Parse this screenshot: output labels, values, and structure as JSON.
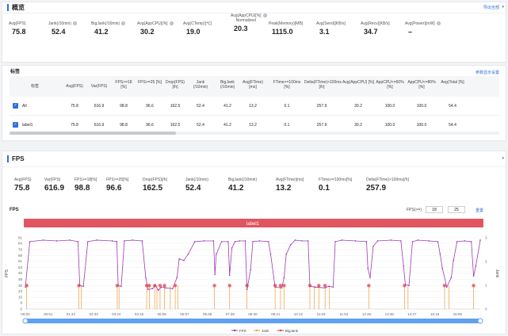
{
  "overview": {
    "title": "概览",
    "export_label": "导出全部",
    "metrics": [
      {
        "label": "Avg(FPS)",
        "value": "75.8",
        "help": false
      },
      {
        "label": "Jank(/10min)",
        "value": "52.4",
        "help": true
      },
      {
        "label": "BigJank(/10min)",
        "value": "41.2",
        "help": true
      },
      {
        "label": "Avg(AppCPU)[%]",
        "value": "30.2",
        "help": true
      },
      {
        "label": "Avg(CTemp)[℃]",
        "value": "19.0",
        "help": false
      },
      {
        "label": "Avg(AppCPU)[%]",
        "label2": "Normalized",
        "value": "20.3",
        "help": true
      },
      {
        "label": "Peak(Memory)[MB]",
        "value": "1115.0",
        "help": false
      },
      {
        "label": "Avg(Send)[KB/s]",
        "value": "3.1",
        "help": false
      },
      {
        "label": "Avg(Recv)[KB/s]",
        "value": "34.7",
        "help": false
      },
      {
        "label": "Avg(Power)[mW]",
        "value": "–",
        "help": true
      }
    ]
  },
  "tags": {
    "title": "标签",
    "settings_link": "参数显示设置",
    "columns": [
      "标签",
      "Avg(FPS)",
      "Var(FPS)",
      "FPS>=18 [%]",
      "FPS>=25 [%]",
      "Drop(FPS) [/h]",
      "Jank (/10min)",
      "BigJank (/10min)",
      "Avg(FTime) [ms]",
      "FTime>=100ms [%]",
      "Delta(FTime)>100ms [/h]",
      "Avg(AppCPU) [%]",
      "AppCPU<=60% [%]",
      "AppCPU<=80% [%]",
      "Avg(Total [%]"
    ],
    "rows": [
      {
        "name": "All",
        "cells": [
          "75.8",
          "616.9",
          "98.8",
          "96.6",
          "162.5",
          "52.4",
          "41.2",
          "13.2",
          "0.1",
          "257.9",
          "30.2",
          "100.0",
          "100.0",
          "54.4"
        ]
      },
      {
        "name": "label1",
        "cells": [
          "75.8",
          "616.9",
          "98.8",
          "96.6",
          "162.5",
          "52.4",
          "41.2",
          "13.2",
          "0.1",
          "257.9",
          "30.2",
          "100.0",
          "100.0",
          "54.4"
        ]
      }
    ]
  },
  "fps_section": {
    "title": "FPS",
    "metrics": [
      {
        "label": "Avg(FPS)",
        "value": "75.8"
      },
      {
        "label": "Var(FPS)",
        "value": "616.9"
      },
      {
        "label": "FPS>=18[%]",
        "value": "98.8"
      },
      {
        "label": "FPS>=25[%]",
        "value": "96.6"
      },
      {
        "label": "Drop(FPS)[/h]",
        "value": "162.5"
      },
      {
        "label": "Jank(/10min)",
        "value": "52.4"
      },
      {
        "label": "BigJank(/10min)",
        "value": "41.2"
      },
      {
        "label": "Avg(FTime)[ms]",
        "value": "13.2"
      },
      {
        "label": "FTime>=100ms[%]",
        "value": "0.1"
      },
      {
        "label": "Delta(FTime)>100ms[/h]",
        "value": "257.9"
      }
    ],
    "chart_title": "FPS",
    "threshold_label": "FPS(>=)",
    "threshold_1": "18",
    "threshold_2": "25",
    "reset_label": "重置"
  },
  "chart_data": {
    "type": "line",
    "band_label": "label1",
    "ylabel": "FPS",
    "ylabel_right": "Jank",
    "ylim": [
      0,
      91
    ],
    "yticks": [
      0,
      8,
      15,
      23,
      30,
      38,
      46,
      53,
      61,
      68,
      76,
      84,
      91
    ],
    "ylim_right": [
      0,
      3
    ],
    "yticks_right": [
      0,
      1,
      2,
      3
    ],
    "x_ticks": [
      "00:00",
      "00:51",
      "01:42",
      "02:33",
      "03:24",
      "04:15",
      "05:06",
      "05:57",
      "06:48",
      "07:39",
      "08:30",
      "09:21",
      "10:12",
      "11:03",
      "11:54",
      "12:45",
      "13:36",
      "14:27",
      "15:18",
      "16:09"
    ],
    "xlim": [
      0,
      1020
    ],
    "legend": [
      "FPS",
      "Jank",
      "BigJank"
    ],
    "series": [
      {
        "name": "FPS",
        "points": [
          [
            0,
            28
          ],
          [
            10,
            86
          ],
          [
            40,
            88
          ],
          [
            70,
            87
          ],
          [
            100,
            88
          ],
          [
            118,
            86
          ],
          [
            122,
            30
          ],
          [
            130,
            29
          ],
          [
            140,
            86
          ],
          [
            160,
            88
          ],
          [
            195,
            87
          ],
          [
            205,
            86
          ],
          [
            208,
            30
          ],
          [
            215,
            29
          ],
          [
            222,
            87
          ],
          [
            240,
            88
          ],
          [
            262,
            87
          ],
          [
            270,
            40
          ],
          [
            275,
            25
          ],
          [
            285,
            26
          ],
          [
            292,
            30
          ],
          [
            298,
            24
          ],
          [
            305,
            28
          ],
          [
            315,
            27
          ],
          [
            330,
            26
          ],
          [
            340,
            40
          ],
          [
            345,
            64
          ],
          [
            355,
            62
          ],
          [
            365,
            70
          ],
          [
            380,
            86
          ],
          [
            400,
            87
          ],
          [
            422,
            87
          ],
          [
            425,
            44
          ],
          [
            428,
            70
          ],
          [
            440,
            86
          ],
          [
            455,
            86
          ],
          [
            458,
            43
          ],
          [
            463,
            78
          ],
          [
            470,
            86
          ],
          [
            480,
            87
          ],
          [
            493,
            87
          ],
          [
            497,
            25
          ],
          [
            505,
            50
          ],
          [
            510,
            86
          ],
          [
            525,
            87
          ],
          [
            545,
            86
          ],
          [
            550,
            70
          ],
          [
            560,
            28
          ],
          [
            575,
            27
          ],
          [
            580,
            40
          ],
          [
            585,
            70
          ],
          [
            595,
            82
          ],
          [
            605,
            88
          ],
          [
            620,
            87
          ],
          [
            634,
            87
          ],
          [
            638,
            29
          ],
          [
            650,
            28
          ],
          [
            672,
            27
          ],
          [
            680,
            29
          ],
          [
            690,
            28
          ],
          [
            695,
            86
          ],
          [
            710,
            88
          ],
          [
            740,
            87
          ],
          [
            765,
            86
          ],
          [
            768,
            52
          ],
          [
            773,
            40
          ],
          [
            780,
            80
          ],
          [
            790,
            87
          ],
          [
            820,
            88
          ],
          [
            842,
            87
          ],
          [
            848,
            55
          ],
          [
            852,
            31
          ],
          [
            860,
            30
          ],
          [
            868,
            86
          ],
          [
            880,
            88
          ],
          [
            905,
            87
          ],
          [
            925,
            86
          ],
          [
            930,
            70
          ],
          [
            935,
            52
          ],
          [
            945,
            28
          ],
          [
            955,
            40
          ],
          [
            960,
            62
          ],
          [
            968,
            86
          ],
          [
            985,
            87
          ],
          [
            1000,
            86
          ],
          [
            1005,
            42
          ],
          [
            1010,
            55
          ],
          [
            1020,
            88
          ]
        ]
      },
      {
        "name": "Jank",
        "values_at": [
          3,
          120,
          125,
          206,
          210,
          272,
          278,
          290,
          295,
          302,
          312,
          325,
          336,
          342,
          424,
          458,
          497,
          560,
          572,
          580,
          638,
          648,
          658,
          672,
          682,
          770,
          850,
          858,
          940,
          950,
          1005
        ]
      },
      {
        "name": "BigJank",
        "values_at": [
          3,
          120,
          206,
          272,
          278,
          290,
          302,
          312,
          336,
          424,
          458,
          497,
          560,
          572,
          580,
          638,
          658,
          672,
          770,
          850,
          940,
          1005
        ]
      }
    ]
  },
  "colors": {
    "accent": "#2f6fde",
    "fps": "#9b3bb3",
    "jank": "#f29b3b",
    "bigjank": "#e0404a",
    "band": "#e05560"
  }
}
